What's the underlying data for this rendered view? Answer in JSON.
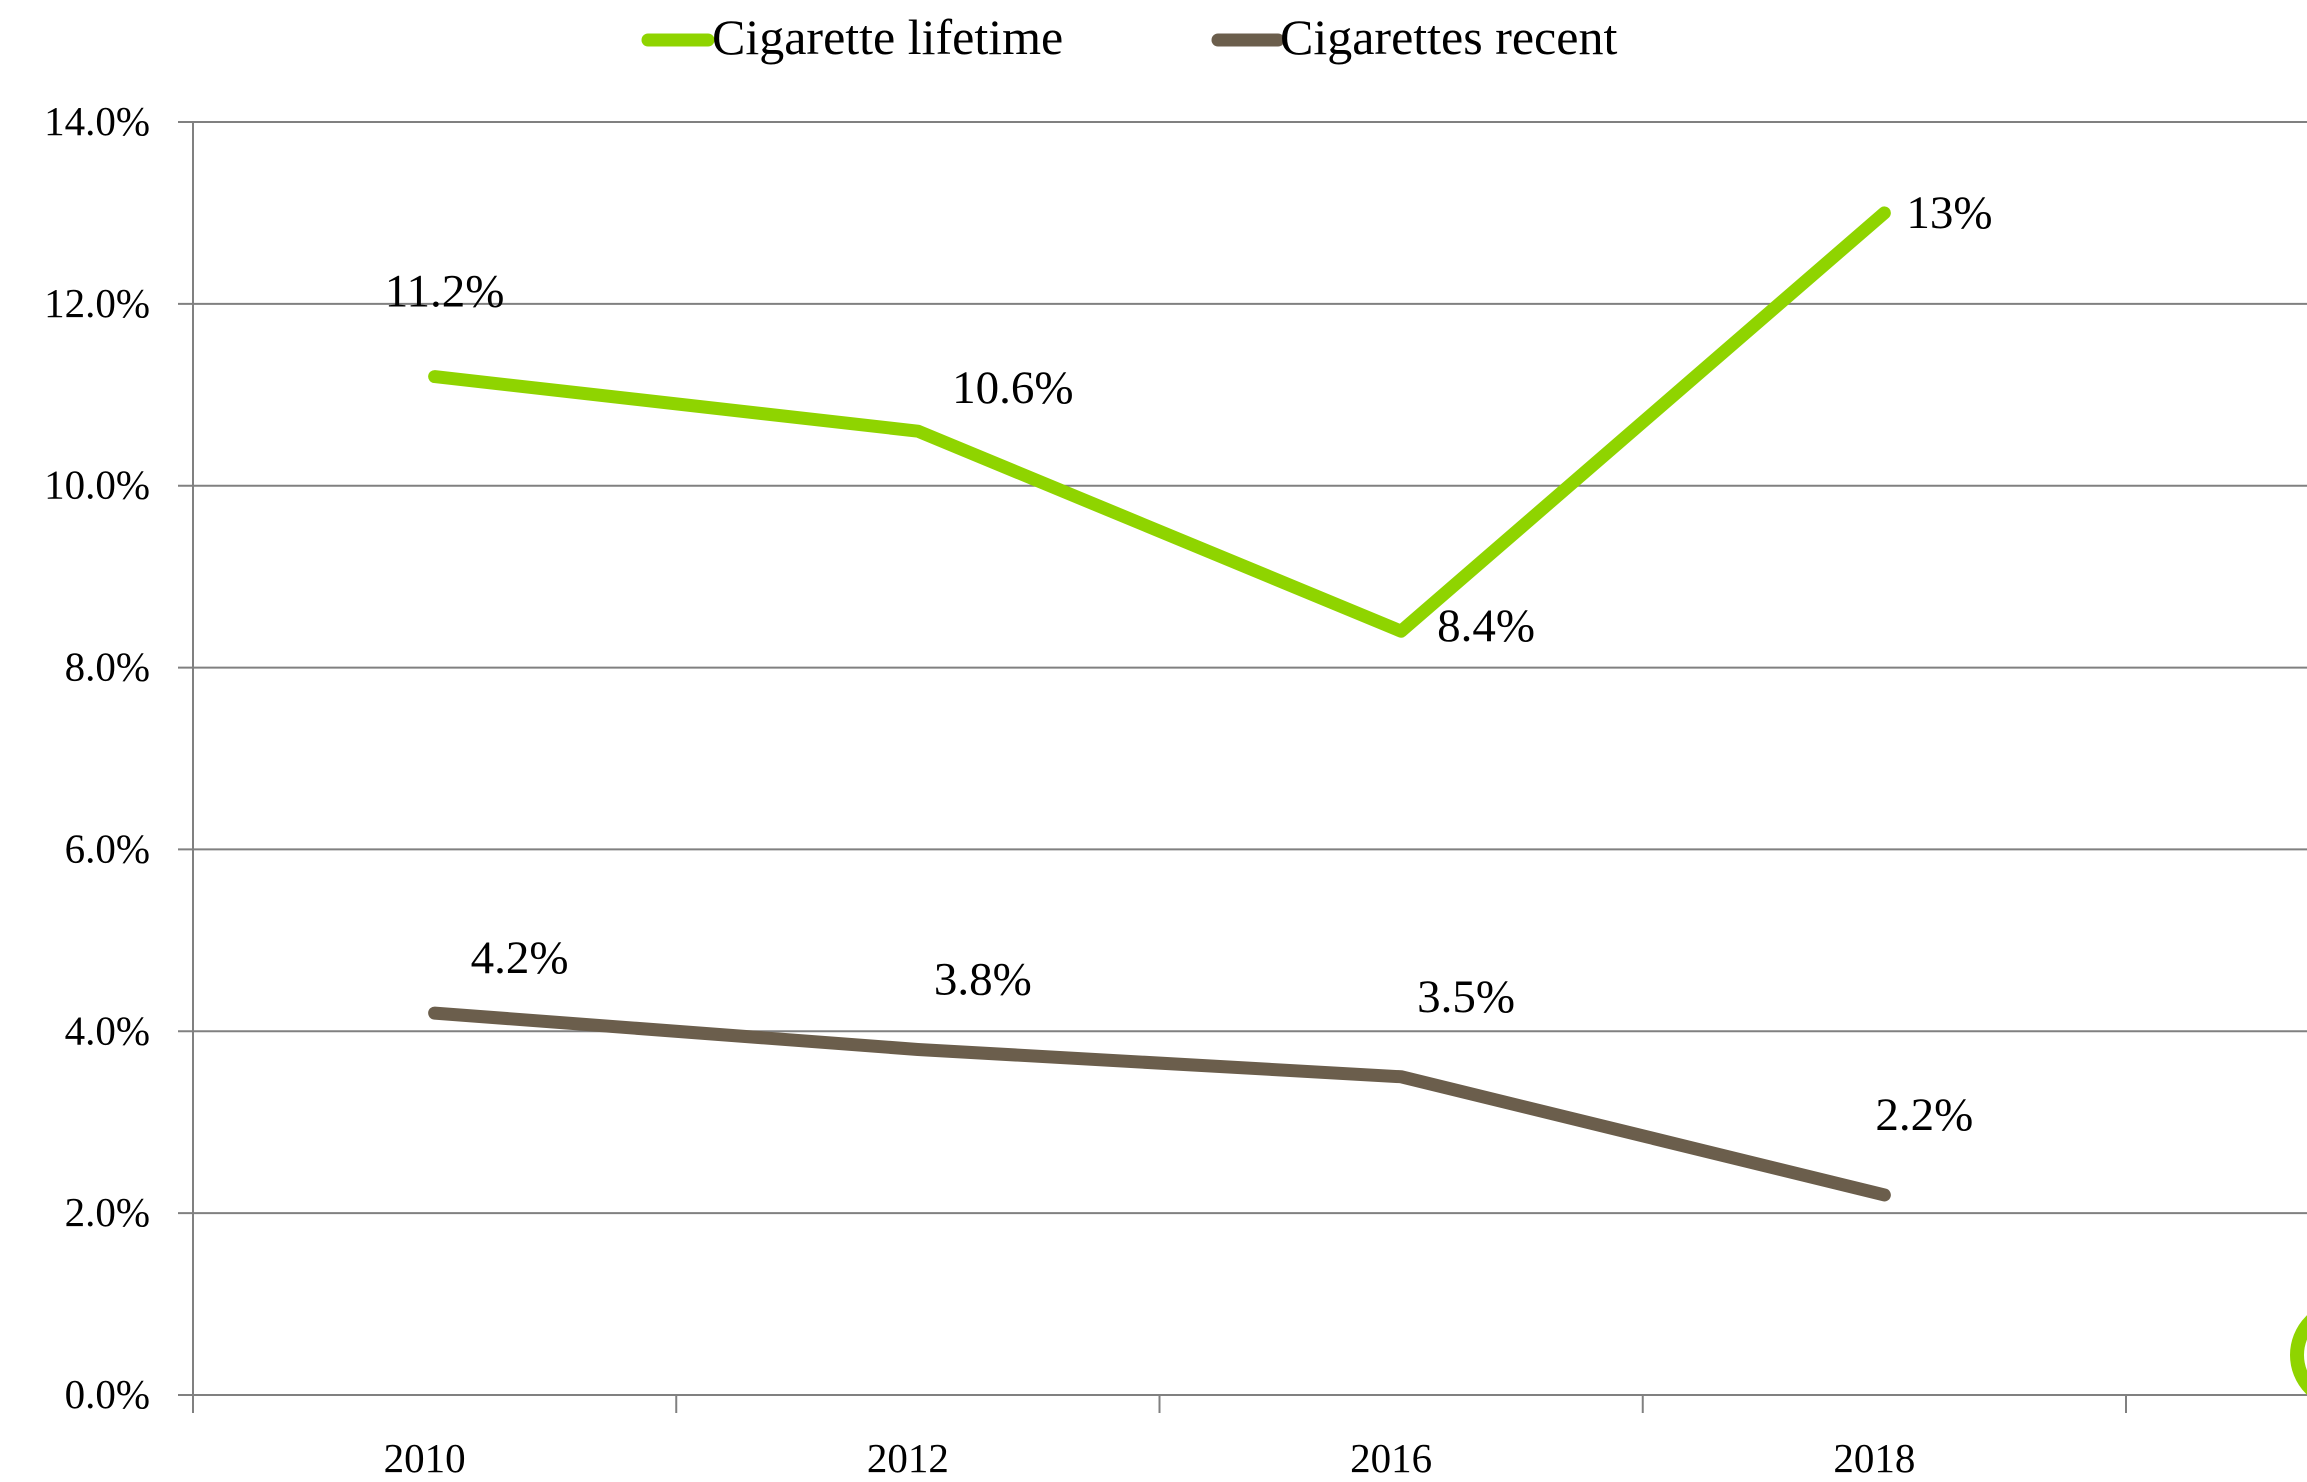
{
  "chart_data": {
    "type": "line",
    "categories": [
      "2010",
      "2012",
      "2016",
      "2018"
    ],
    "series": [
      {
        "name": "Cigarette lifetime",
        "values": [
          11.2,
          10.6,
          8.4,
          13.0
        ],
        "labels": [
          "11.2%",
          "10.6%",
          "8.4%",
          "13%"
        ],
        "color": "#8fd400"
      },
      {
        "name": "Cigarettes recent",
        "values": [
          4.2,
          3.8,
          3.5,
          2.2
        ],
        "labels": [
          "4.2%",
          "3.8%",
          "3.5%",
          "2.2%"
        ],
        "color": "#6b5e4c"
      }
    ],
    "ylim": [
      0,
      14
    ],
    "yticks": [
      "0.0%",
      "2.0%",
      "4.0%",
      "6.0%",
      "8.0%",
      "10.0%",
      "12.0%",
      "14.0%"
    ],
    "grid": true,
    "legend_position": "top-center",
    "title": "",
    "xlabel": "",
    "ylabel": ""
  },
  "colors": {
    "gridline": "#808080",
    "axis": "#808080",
    "corner_accent": "#8fd400"
  }
}
